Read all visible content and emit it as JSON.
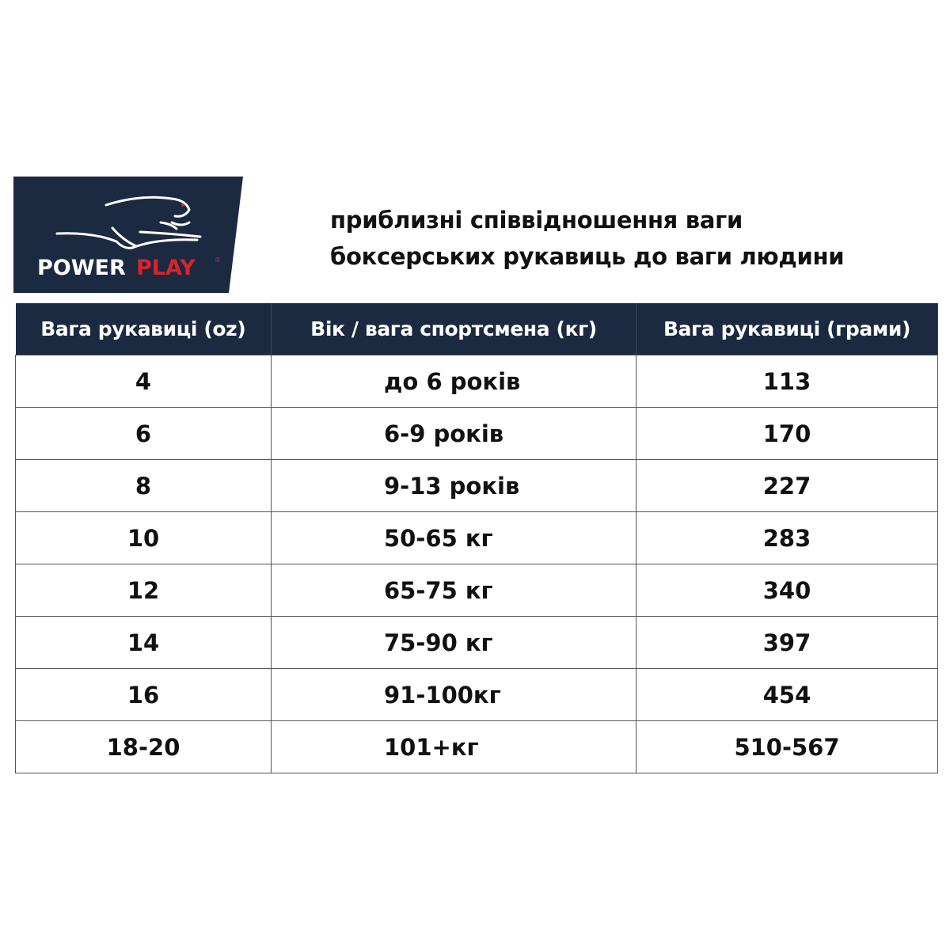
{
  "brand": {
    "logo_text_white": "POWER",
    "logo_text_red": "PLAY",
    "registered": "®",
    "navy": "#1b2a40",
    "red": "#d8232a"
  },
  "title": {
    "line1": "приблизні співвідношення ваги",
    "line2": "боксерських рукавиць до ваги людини"
  },
  "table": {
    "headers": [
      "Вага рукавиці (oz)",
      "Вік / вага спортсмена (кг)",
      "Вага рукавиці (грами)"
    ],
    "rows": [
      [
        "4",
        "до 6 років",
        "113"
      ],
      [
        "6",
        "6-9 років",
        "170"
      ],
      [
        "8",
        "9-13 років",
        "227"
      ],
      [
        "10",
        "50-65 кг",
        "283"
      ],
      [
        "12",
        "65-75 кг",
        "340"
      ],
      [
        "14",
        "75-90 кг",
        "397"
      ],
      [
        "16",
        "91-100кг",
        "454"
      ],
      [
        "18-20",
        "101+кг",
        "510-567"
      ]
    ]
  }
}
